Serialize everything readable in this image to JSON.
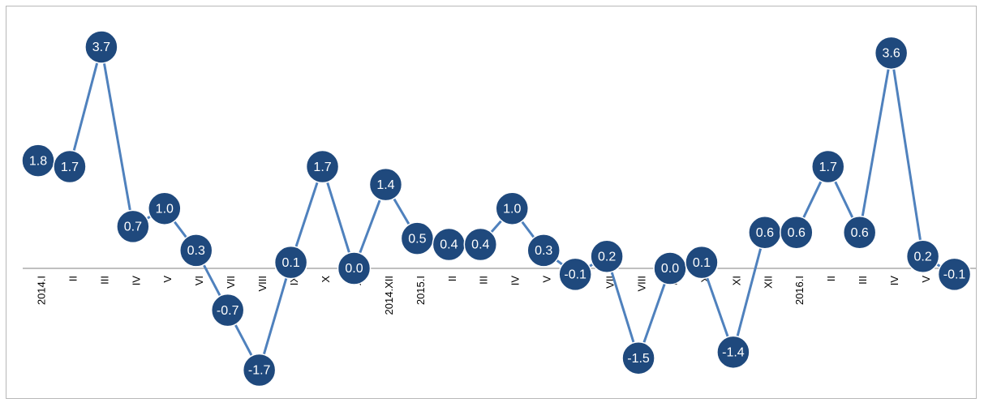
{
  "chart_data": {
    "type": "line",
    "title": "",
    "xlabel": "",
    "ylabel": "",
    "categories": [
      "2014.I",
      "II",
      "III",
      "IV",
      "V",
      "VI",
      "VII",
      "VIII",
      "IX",
      "X",
      "XI",
      "2014.XII",
      "2015.I",
      "II",
      "III",
      "IV",
      "V",
      "VI",
      "VII",
      "VIII",
      "IX",
      "X",
      "XI",
      "XII",
      "2016.I",
      "II",
      "III",
      "IV",
      "V",
      "VI"
    ],
    "values": [
      1.8,
      1.7,
      3.7,
      0.7,
      1.0,
      0.3,
      -0.7,
      -1.7,
      0.1,
      1.7,
      0.0,
      1.4,
      0.5,
      0.4,
      0.4,
      1.0,
      0.3,
      -0.1,
      0.2,
      -1.5,
      0.0,
      0.1,
      -1.4,
      0.6,
      0.6,
      1.7,
      0.6,
      3.6,
      0.2,
      -0.1
    ],
    "labels": [
      "1.8",
      "1.7",
      "3.7",
      "0.7",
      "1.0",
      "0.3",
      "-0.7",
      "-1.7",
      "0.1",
      "1.7",
      "0.0",
      "1.4",
      "0.5",
      "0.4",
      "0.4",
      "1.0",
      "0.3",
      "-0.1",
      "0.2",
      "-1.5",
      "0.0",
      "0.1",
      "-1.4",
      "0.6",
      "0.6",
      "1.7",
      "0.6",
      "3.6",
      "0.2",
      "-0.1"
    ],
    "grid": false,
    "legend": "none",
    "colors": {
      "line": "#4f81bd",
      "marker_fill": "#1f497d",
      "marker_edge": "#ffffff",
      "axis": "#808080",
      "label": "#ffffff"
    }
  }
}
